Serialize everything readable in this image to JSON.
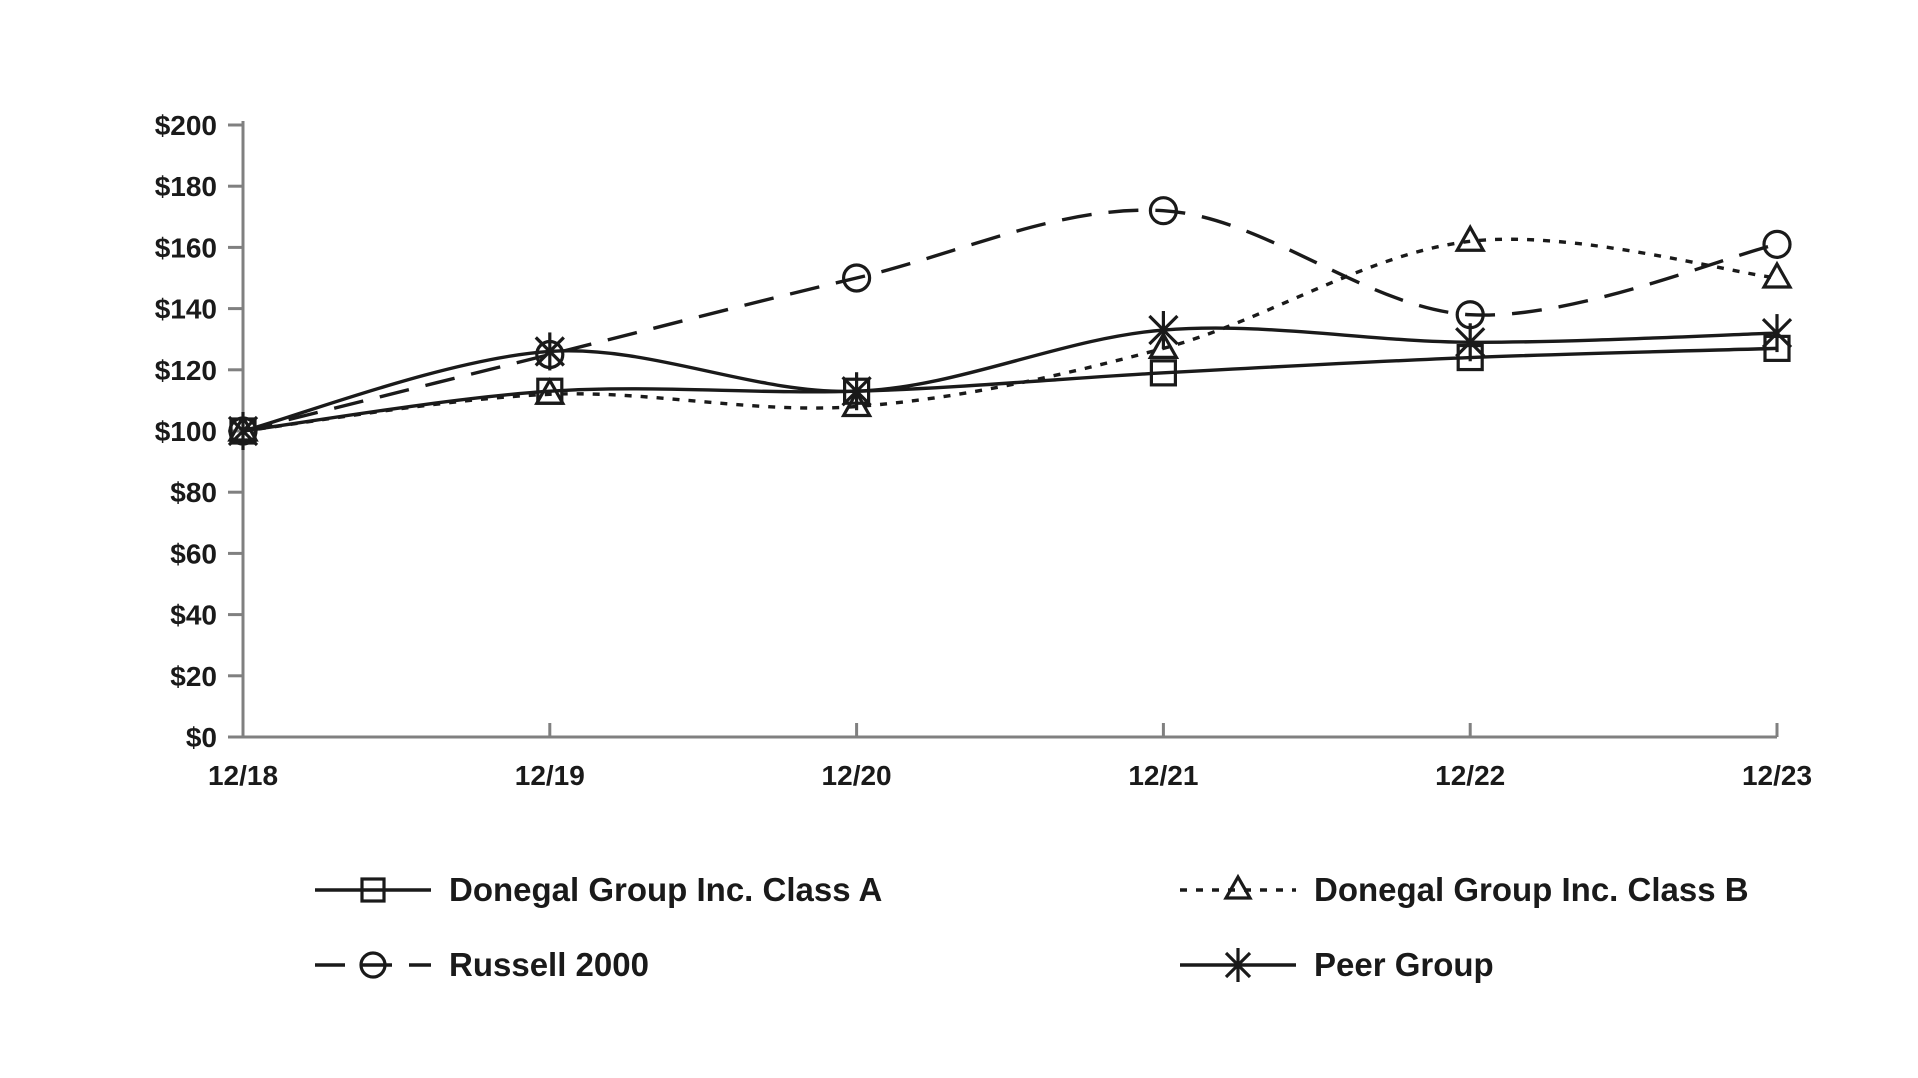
{
  "chart_data": {
    "type": "line",
    "title": "",
    "xlabel": "",
    "ylabel": "",
    "categories": [
      "12/18",
      "12/19",
      "12/20",
      "12/21",
      "12/22",
      "12/23"
    ],
    "series": [
      {
        "name": "Donegal Group Inc. Class A",
        "marker": "square",
        "line_style": "solid",
        "values": [
          100,
          113,
          113,
          119,
          124,
          127
        ]
      },
      {
        "name": "Donegal Group Inc. Class B",
        "marker": "triangle",
        "line_style": "dotted",
        "values": [
          100,
          112,
          108,
          127,
          162,
          150
        ]
      },
      {
        "name": "Russell 2000",
        "marker": "circle",
        "line_style": "dashed",
        "values": [
          100,
          125,
          150,
          172,
          138,
          161
        ]
      },
      {
        "name": "Peer Group",
        "marker": "star",
        "line_style": "solid",
        "values": [
          100,
          126,
          113,
          133,
          129,
          132
        ]
      }
    ],
    "ylim": [
      0,
      200
    ],
    "ytick_step": 20,
    "ytick_labels": [
      "$0",
      "$20",
      "$40",
      "$60",
      "$80",
      "$100",
      "$120",
      "$140",
      "$160",
      "$180",
      "$200"
    ],
    "grid": false,
    "legend_position": "bottom",
    "colors": {
      "line": "#1a1a1a",
      "text": "#1a1a1a",
      "axis": "#808080"
    }
  }
}
